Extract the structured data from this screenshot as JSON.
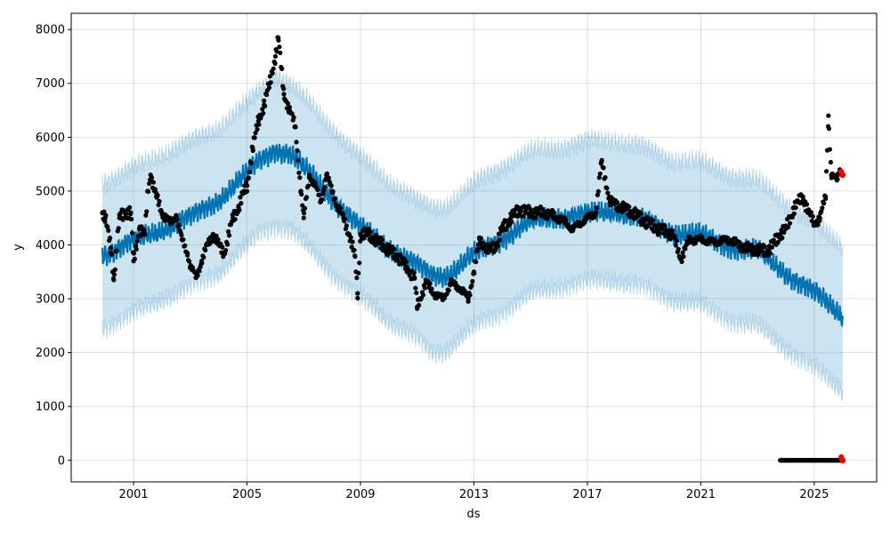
{
  "chart_data": {
    "type": "line",
    "title": "",
    "xlabel": "ds",
    "ylabel": "y",
    "xlim": [
      1998.8,
      2027.2
    ],
    "ylim": [
      -400,
      8300
    ],
    "grid": true,
    "x_ticks": [
      2001,
      2005,
      2009,
      2013,
      2017,
      2021,
      2025
    ],
    "x_tick_labels": [
      "2001",
      "2005",
      "2009",
      "2013",
      "2017",
      "2021",
      "2025"
    ],
    "y_ticks": [
      0,
      1000,
      2000,
      3000,
      4000,
      5000,
      6000,
      7000,
      8000
    ],
    "y_tick_labels": [
      "0",
      "1000",
      "2000",
      "3000",
      "4000",
      "5000",
      "6000",
      "7000",
      "8000"
    ],
    "colors": {
      "forecast": "#0072B2",
      "band": "#0072B2",
      "actual": "#000000",
      "recent": "#ff0000"
    },
    "forecast": {
      "x": [
        1999.9,
        2001,
        2002,
        2003,
        2004,
        2005,
        2005.5,
        2006,
        2006.5,
        2007,
        2008,
        2009,
        2010,
        2011,
        2011.5,
        2012,
        2012.5,
        2013,
        2014,
        2015,
        2016,
        2017,
        2018,
        2019,
        2020,
        2021,
        2022,
        2023,
        2024,
        2025,
        2026
      ],
      "yhat": [
        3850,
        4050,
        4300,
        4500,
        4850,
        5300,
        5600,
        5800,
        5700,
        5400,
        4900,
        4300,
        3950,
        3600,
        3450,
        3450,
        3600,
        3800,
        4150,
        4400,
        4550,
        4550,
        4650,
        4450,
        4250,
        4150,
        4000,
        3850,
        3500,
        3100,
        2700
      ],
      "upper": [
        5200,
        5400,
        5700,
        5900,
        6200,
        6600,
        6900,
        7200,
        7000,
        6700,
        6200,
        5600,
        5200,
        4800,
        4700,
        4750,
        4900,
        5100,
        5500,
        5700,
        5850,
        5900,
        5950,
        5800,
        5600,
        5500,
        5350,
        5150,
        4800,
        4400,
        4000
      ],
      "lower": [
        2500,
        2700,
        3000,
        3200,
        3500,
        3950,
        4250,
        4400,
        4300,
        4000,
        3500,
        3000,
        2600,
        2250,
        2000,
        2050,
        2250,
        2450,
        2800,
        3050,
        3250,
        3300,
        3350,
        3200,
        3000,
        2850,
        2650,
        2450,
        2100,
        1700,
        1300
      ]
    },
    "actual": {
      "x": [
        1999.9,
        2000.0,
        2000.2,
        2000.3,
        2000.5,
        2000.7,
        2000.9,
        2001.0,
        2001.2,
        2001.4,
        2001.5,
        2001.6,
        2001.8,
        2002.0,
        2002.3,
        2002.5,
        2002.7,
        2002.9,
        2003.0,
        2003.2,
        2003.4,
        2003.6,
        2003.8,
        2004.0,
        2004.2,
        2004.5,
        2004.7,
        2004.9,
        2005.0,
        2005.2,
        2005.4,
        2005.6,
        2005.8,
        2006.0,
        2006.1,
        2006.3,
        2006.5,
        2006.7,
        2006.9,
        2007.0,
        2007.2,
        2007.4,
        2007.6,
        2007.8,
        2008.0,
        2008.2,
        2008.4,
        2008.6,
        2008.8,
        2008.9,
        2009.0,
        2009.3,
        2009.5,
        2009.8,
        2010.0,
        2010.3,
        2010.6,
        2010.9,
        2011.0,
        2011.3,
        2011.6,
        2011.9,
        2012.2,
        2012.5,
        2012.8,
        2013.0,
        2013.2,
        2013.5,
        2013.8,
        2014.0,
        2014.3,
        2014.6,
        2015.0,
        2015.5,
        2016.0,
        2016.5,
        2017.0,
        2017.3,
        2017.5,
        2017.8,
        2018.2,
        2018.6,
        2019.0,
        2019.5,
        2020.0,
        2020.3,
        2020.6,
        2021.0,
        2021.5,
        2022.0,
        2022.5,
        2023.0,
        2023.4,
        2023.8,
        2024.0,
        2024.3,
        2024.6,
        2024.8,
        2025.0,
        2025.2,
        2025.4,
        2025.5,
        2025.6,
        2025.8,
        2025.9
      ],
      "y": [
        4600,
        4500,
        3950,
        3350,
        4500,
        4600,
        4600,
        3700,
        4300,
        4200,
        5000,
        5300,
        4900,
        4600,
        4400,
        4550,
        4100,
        3850,
        3600,
        3400,
        3700,
        4000,
        4200,
        4000,
        3850,
        4500,
        4700,
        5000,
        5100,
        5800,
        6300,
        6600,
        7000,
        7500,
        7850,
        6800,
        6500,
        6200,
        5000,
        4500,
        5300,
        5100,
        4800,
        5300,
        5000,
        4700,
        4500,
        4200,
        3800,
        3100,
        4200,
        4200,
        4100,
        4000,
        3900,
        3800,
        3600,
        3400,
        2850,
        3300,
        3100,
        3000,
        3300,
        3200,
        3000,
        3500,
        4100,
        3900,
        4000,
        4300,
        4500,
        4650,
        4600,
        4600,
        4500,
        4300,
        4500,
        4600,
        5550,
        4800,
        4700,
        4600,
        4450,
        4300,
        4200,
        3750,
        4100,
        4100,
        4050,
        4100,
        3950,
        3900,
        3900,
        4200,
        4300,
        4700,
        4900,
        4600,
        4400,
        4500,
        4900,
        6400,
        5300,
        5200,
        5400
      ],
      "zeros_range": [
        2023.8,
        2025.95
      ]
    },
    "recent": {
      "x": [
        2026.0,
        2026.0
      ],
      "y": [
        5300,
        0
      ]
    }
  }
}
